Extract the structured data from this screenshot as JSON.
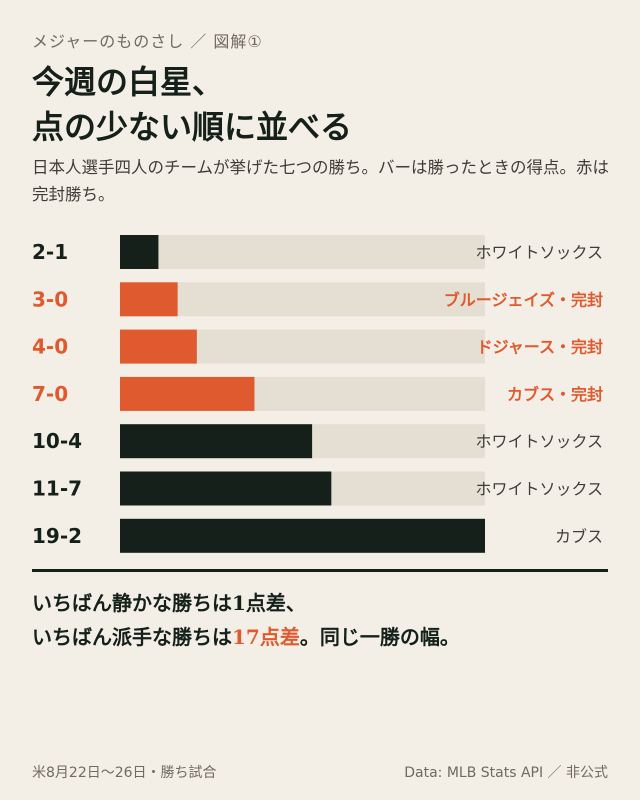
{
  "header": {
    "kicker": "メジャーのものさし ／ 図解①",
    "title_line1": "今週の白星、",
    "title_line2": "点の少ない順に並べる",
    "lede": "日本人選手四人のチームが挙げた七つの勝ち。バーは勝ったときの得点。赤は完封勝ち。"
  },
  "colors": {
    "dark": "#15201b",
    "accent": "#e05a2f",
    "track": "#e5ded2",
    "background": "#f4efe6"
  },
  "chart_data": {
    "type": "bar",
    "orientation": "horizontal",
    "xlim": [
      0,
      19
    ],
    "grid": false,
    "rows": [
      {
        "score": "2-1",
        "runs": 2,
        "team": "ホワイトソックス",
        "shutout": false
      },
      {
        "score": "3-0",
        "runs": 3,
        "team": "ブルージェイズ・完封",
        "shutout": true
      },
      {
        "score": "4-0",
        "runs": 4,
        "team": "ドジャース・完封",
        "shutout": true
      },
      {
        "score": "7-0",
        "runs": 7,
        "team": "カブス・完封",
        "shutout": true
      },
      {
        "score": "10-4",
        "runs": 10,
        "team": "ホワイトソックス",
        "shutout": false
      },
      {
        "score": "11-7",
        "runs": 11,
        "team": "ホワイトソックス",
        "shutout": false
      },
      {
        "score": "19-2",
        "runs": 19,
        "team": "カブス",
        "shutout": false
      }
    ]
  },
  "summary": {
    "line1": "いちばん静かな勝ちは1点差、",
    "line2_a": "いちばん派手な勝ちは",
    "line2_highlight": "17点差",
    "line2_b": "。同じ一勝の幅。"
  },
  "footer": {
    "left": "米8月22日〜26日・勝ち試合",
    "right": "Data: MLB Stats API ／ 非公式"
  }
}
